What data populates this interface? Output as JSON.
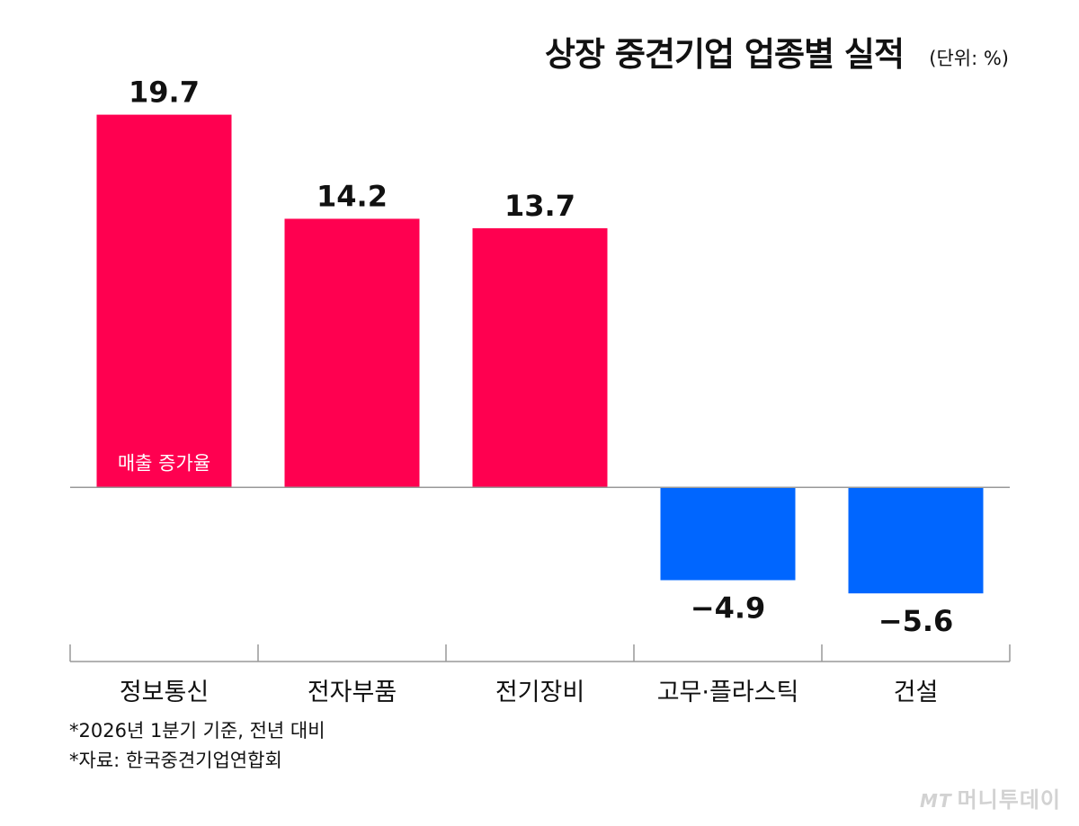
{
  "header": {
    "title": "상장 중견기업 업종별 실적",
    "unit": "(단위: %)"
  },
  "chart_data": {
    "type": "bar",
    "categories": [
      "정보통신",
      "전자부품",
      "전기장비",
      "고무·플라스틱",
      "건설"
    ],
    "values": [
      19.7,
      14.2,
      13.7,
      -4.9,
      -5.6
    ],
    "value_labels": [
      "19.7",
      "14.2",
      "13.7",
      "−4.9",
      "−5.6"
    ],
    "series_label": "매출 증가율",
    "ylim": [
      -7.3,
      21.2
    ],
    "colors": {
      "positive": "#FF0050",
      "negative": "#0066FF",
      "axis": "#999999"
    },
    "grid": false
  },
  "footnotes": {
    "basis": "*2026년 1분기 기준, 전년 대비",
    "source": "*자료: 한국중견기업연합회"
  },
  "watermark": {
    "brand_mark": "MT",
    "brand": "머니투데이"
  }
}
